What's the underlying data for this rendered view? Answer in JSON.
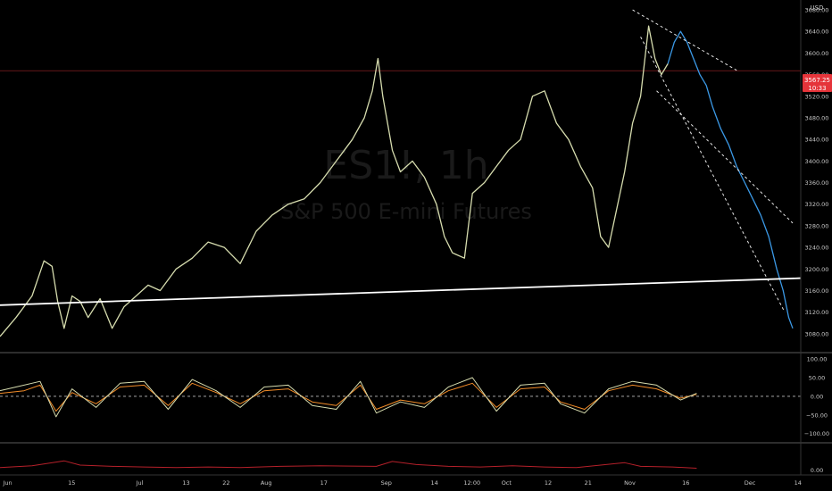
{
  "watermark": {
    "symbol": "ES1!, 1h",
    "name": "S&P 500 E-mini Futures"
  },
  "currency": "USD",
  "price_tag": {
    "value": "3567.25",
    "countdown": "10:33"
  },
  "colors": {
    "background": "#000000",
    "price_old": "#d6dcae",
    "price_recent": "#3b99e6",
    "trendline": "#ffffff",
    "channel": "#e6e6e6",
    "osc_orange": "#f28c28",
    "osc_yellow": "#d6dcae",
    "osc_bottom": "#b5202a",
    "price_tag_bg": "#e5343a",
    "axis_text": "#c8c8c8",
    "separator": "#5a5a5a"
  },
  "chart_data": [
    {
      "type": "line",
      "panel": "price",
      "y_axis_side": "right",
      "ylim": [
        3050,
        3690
      ],
      "y_ticks": [
        3080,
        3120,
        3160,
        3200,
        3240,
        3280,
        3320,
        3360,
        3400,
        3440,
        3480,
        3520,
        3560,
        3600,
        3640,
        3680
      ],
      "x_tick_labels": [
        "Jun",
        "15",
        "Jul",
        "13",
        "22",
        "Aug",
        "17",
        "Sep",
        "14",
        "12:00",
        "Oct",
        "12",
        "21",
        "Nov",
        "16",
        "Dec",
        "14"
      ],
      "series": [
        {
          "color_key": "price_old",
          "points": [
            [
              0.0,
              3075
            ],
            [
              0.02,
              3110
            ],
            [
              0.04,
              3150
            ],
            [
              0.055,
              3215
            ],
            [
              0.065,
              3205
            ],
            [
              0.072,
              3140
            ],
            [
              0.08,
              3090
            ],
            [
              0.09,
              3150
            ],
            [
              0.1,
              3140
            ],
            [
              0.11,
              3110
            ],
            [
              0.125,
              3145
            ],
            [
              0.14,
              3090
            ],
            [
              0.155,
              3130
            ],
            [
              0.17,
              3150
            ],
            [
              0.185,
              3170
            ],
            [
              0.2,
              3160
            ],
            [
              0.22,
              3200
            ],
            [
              0.24,
              3220
            ],
            [
              0.26,
              3250
            ],
            [
              0.28,
              3240
            ],
            [
              0.3,
              3210
            ],
            [
              0.32,
              3270
            ],
            [
              0.34,
              3300
            ],
            [
              0.36,
              3320
            ],
            [
              0.38,
              3330
            ],
            [
              0.4,
              3360
            ],
            [
              0.42,
              3400
            ],
            [
              0.44,
              3440
            ],
            [
              0.455,
              3480
            ],
            [
              0.465,
              3530
            ],
            [
              0.472,
              3590
            ],
            [
              0.478,
              3520
            ],
            [
              0.49,
              3420
            ],
            [
              0.5,
              3380
            ],
            [
              0.515,
              3400
            ],
            [
              0.53,
              3370
            ],
            [
              0.545,
              3320
            ],
            [
              0.555,
              3260
            ],
            [
              0.565,
              3230
            ],
            [
              0.58,
              3220
            ],
            [
              0.59,
              3340
            ],
            [
              0.605,
              3360
            ],
            [
              0.62,
              3390
            ],
            [
              0.635,
              3420
            ],
            [
              0.65,
              3440
            ],
            [
              0.665,
              3520
            ],
            [
              0.68,
              3530
            ],
            [
              0.695,
              3470
            ],
            [
              0.71,
              3440
            ],
            [
              0.725,
              3390
            ],
            [
              0.74,
              3350
            ],
            [
              0.75,
              3260
            ],
            [
              0.76,
              3240
            ],
            [
              0.77,
              3310
            ],
            [
              0.78,
              3380
            ],
            [
              0.79,
              3470
            ],
            [
              0.8,
              3520
            ],
            [
              0.81,
              3650
            ],
            [
              0.818,
              3590
            ],
            [
              0.826,
              3560
            ],
            [
              0.834,
              3580
            ]
          ]
        },
        {
          "color_key": "price_recent",
          "points": [
            [
              0.834,
              3580
            ],
            [
              0.842,
              3620
            ],
            [
              0.85,
              3640
            ],
            [
              0.858,
              3620
            ],
            [
              0.866,
              3590
            ],
            [
              0.874,
              3560
            ],
            [
              0.882,
              3540
            ],
            [
              0.89,
              3500
            ],
            [
              0.9,
              3460
            ],
            [
              0.91,
              3430
            ],
            [
              0.92,
              3390
            ],
            [
              0.93,
              3360
            ],
            [
              0.94,
              3330
            ],
            [
              0.95,
              3300
            ],
            [
              0.96,
              3260
            ],
            [
              0.97,
              3200
            ],
            [
              0.978,
              3160
            ],
            [
              0.985,
              3110
            ],
            [
              0.99,
              3090
            ]
          ]
        }
      ],
      "trendlines": [
        {
          "style": "solid",
          "color_key": "trendline",
          "from": [
            0.0,
            3133
          ],
          "to": [
            1.0,
            3183
          ]
        },
        {
          "style": "dashed",
          "color_key": "channel",
          "from": [
            0.79,
            3680
          ],
          "to": [
            0.92,
            3568
          ]
        },
        {
          "style": "dashed",
          "color_key": "channel",
          "from": [
            0.8,
            3630
          ],
          "to": [
            0.98,
            3120
          ]
        },
        {
          "style": "dashed",
          "color_key": "channel",
          "from": [
            0.82,
            3530
          ],
          "to": [
            0.99,
            3285
          ]
        }
      ],
      "horizontal_lines": [
        {
          "value": 3567.25,
          "color_key": "price_tag_bg"
        }
      ]
    },
    {
      "type": "line",
      "panel": "oscillator",
      "y_axis_side": "right",
      "ylim": [
        -120,
        110
      ],
      "y_ticks": [
        100,
        50,
        0,
        -50,
        -100
      ],
      "y_tick_labels": [
        "100.00",
        "50.00",
        "0.00",
        "−50.00",
        "−100.00"
      ],
      "zero_line": "dashed",
      "series": [
        {
          "color_key": "osc_orange",
          "points": [
            [
              0.0,
              8
            ],
            [
              0.03,
              15
            ],
            [
              0.05,
              30
            ],
            [
              0.07,
              -40
            ],
            [
              0.09,
              10
            ],
            [
              0.12,
              -20
            ],
            [
              0.15,
              25
            ],
            [
              0.18,
              30
            ],
            [
              0.21,
              -25
            ],
            [
              0.24,
              35
            ],
            [
              0.27,
              10
            ],
            [
              0.3,
              -20
            ],
            [
              0.33,
              15
            ],
            [
              0.36,
              20
            ],
            [
              0.39,
              -15
            ],
            [
              0.42,
              -25
            ],
            [
              0.45,
              30
            ],
            [
              0.47,
              -35
            ],
            [
              0.5,
              -10
            ],
            [
              0.53,
              -20
            ],
            [
              0.56,
              15
            ],
            [
              0.59,
              35
            ],
            [
              0.62,
              -30
            ],
            [
              0.65,
              20
            ],
            [
              0.68,
              25
            ],
            [
              0.7,
              -15
            ],
            [
              0.73,
              -35
            ],
            [
              0.76,
              15
            ],
            [
              0.79,
              30
            ],
            [
              0.82,
              20
            ],
            [
              0.85,
              -5
            ],
            [
              0.87,
              5
            ]
          ]
        },
        {
          "color_key": "osc_yellow",
          "points": [
            [
              0.0,
              15
            ],
            [
              0.02,
              25
            ],
            [
              0.05,
              40
            ],
            [
              0.07,
              -55
            ],
            [
              0.09,
              20
            ],
            [
              0.12,
              -30
            ],
            [
              0.15,
              35
            ],
            [
              0.18,
              40
            ],
            [
              0.21,
              -35
            ],
            [
              0.24,
              45
            ],
            [
              0.27,
              15
            ],
            [
              0.3,
              -30
            ],
            [
              0.33,
              25
            ],
            [
              0.36,
              30
            ],
            [
              0.39,
              -25
            ],
            [
              0.42,
              -35
            ],
            [
              0.45,
              40
            ],
            [
              0.47,
              -45
            ],
            [
              0.5,
              -15
            ],
            [
              0.53,
              -30
            ],
            [
              0.56,
              25
            ],
            [
              0.59,
              50
            ],
            [
              0.62,
              -40
            ],
            [
              0.65,
              30
            ],
            [
              0.68,
              35
            ],
            [
              0.7,
              -20
            ],
            [
              0.73,
              -45
            ],
            [
              0.76,
              20
            ],
            [
              0.79,
              40
            ],
            [
              0.82,
              30
            ],
            [
              0.85,
              -10
            ],
            [
              0.87,
              8
            ]
          ]
        }
      ]
    },
    {
      "type": "line",
      "panel": "volatility",
      "y_axis_side": "right",
      "ylim": [
        -5,
        40
      ],
      "y_ticks": [
        0
      ],
      "y_tick_labels": [
        "0.00"
      ],
      "series": [
        {
          "color_key": "osc_bottom",
          "points": [
            [
              0.0,
              4
            ],
            [
              0.04,
              7
            ],
            [
              0.08,
              15
            ],
            [
              0.1,
              8
            ],
            [
              0.14,
              6
            ],
            [
              0.18,
              5
            ],
            [
              0.22,
              4
            ],
            [
              0.26,
              5
            ],
            [
              0.3,
              4
            ],
            [
              0.35,
              6
            ],
            [
              0.4,
              7
            ],
            [
              0.47,
              6
            ],
            [
              0.49,
              14
            ],
            [
              0.52,
              9
            ],
            [
              0.56,
              6
            ],
            [
              0.6,
              5
            ],
            [
              0.64,
              7
            ],
            [
              0.68,
              5
            ],
            [
              0.72,
              4
            ],
            [
              0.75,
              8
            ],
            [
              0.78,
              12
            ],
            [
              0.8,
              6
            ],
            [
              0.84,
              5
            ],
            [
              0.87,
              3
            ]
          ]
        }
      ]
    }
  ]
}
